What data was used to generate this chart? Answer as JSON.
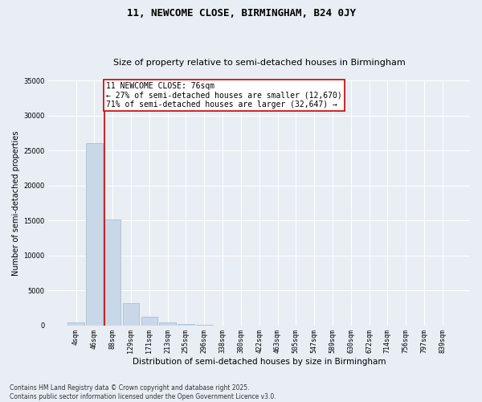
{
  "title": "11, NEWCOME CLOSE, BIRMINGHAM, B24 0JY",
  "subtitle": "Size of property relative to semi-detached houses in Birmingham",
  "xlabel": "Distribution of semi-detached houses by size in Birmingham",
  "ylabel": "Number of semi-detached properties",
  "categories": [
    "4sqm",
    "46sqm",
    "88sqm",
    "129sqm",
    "171sqm",
    "213sqm",
    "255sqm",
    "296sqm",
    "338sqm",
    "380sqm",
    "422sqm",
    "463sqm",
    "505sqm",
    "547sqm",
    "589sqm",
    "630sqm",
    "672sqm",
    "714sqm",
    "756sqm",
    "797sqm",
    "839sqm"
  ],
  "values": [
    400,
    26100,
    15100,
    3200,
    1200,
    450,
    200,
    50,
    0,
    0,
    0,
    0,
    0,
    0,
    0,
    0,
    0,
    0,
    0,
    0,
    0
  ],
  "bar_color": "#c8d8e8",
  "bar_edge_color": "#a0b8cc",
  "property_line_bin": 2,
  "property_line_color": "#cc0000",
  "annotation_text": "11 NEWCOME CLOSE: 76sqm\n← 27% of semi-detached houses are smaller (12,670)\n71% of semi-detached houses are larger (32,647) →",
  "annotation_box_color": "#ffffff",
  "annotation_box_edge": "#cc0000",
  "ylim": [
    0,
    35000
  ],
  "yticks": [
    0,
    5000,
    10000,
    15000,
    20000,
    25000,
    30000,
    35000
  ],
  "footnote": "Contains HM Land Registry data © Crown copyright and database right 2025.\nContains public sector information licensed under the Open Government Licence v3.0.",
  "bg_color": "#e8eef4",
  "grid_color": "#ffffff",
  "title_fontsize": 9,
  "subtitle_fontsize": 8,
  "axis_label_fontsize": 7.5,
  "tick_fontsize": 6,
  "annotation_fontsize": 7,
  "footnote_fontsize": 5.5,
  "ylabel_fontsize": 7
}
